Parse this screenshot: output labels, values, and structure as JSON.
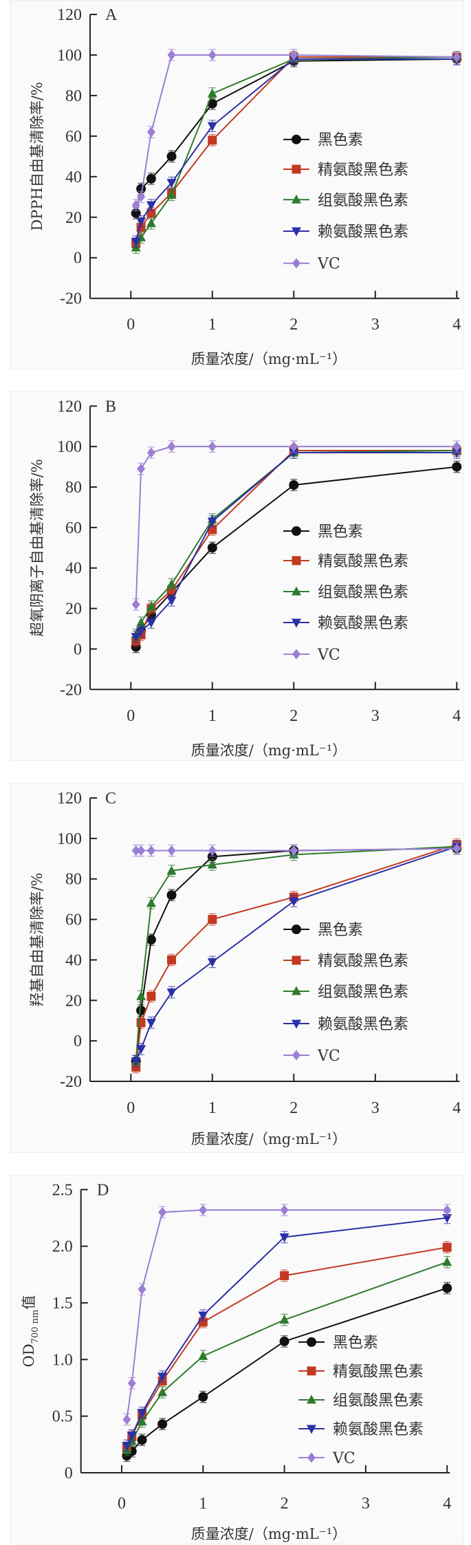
{
  "chart_data": [
    {
      "type": "line",
      "panel": "A",
      "title": "A",
      "xlabel": "质量浓度/（mg·mL⁻¹）",
      "ylabel": "DPPH自由基清除率/%",
      "xlim": [
        0,
        4
      ],
      "ylim": [
        -20,
        120
      ],
      "xticks": [
        "0",
        "1",
        "2",
        "3",
        "4"
      ],
      "yticks": [
        "120",
        "100",
        "80",
        "60",
        "40",
        "20",
        "0",
        "-20"
      ],
      "yticks_values": [
        120,
        100,
        80,
        60,
        40,
        20,
        0,
        -20
      ],
      "legend_position": "right-center",
      "x": [
        0.0625,
        0.125,
        0.25,
        0.5,
        1,
        2,
        4
      ],
      "series": [
        {
          "name": "黑色素",
          "marker": "circle",
          "color": "#111111",
          "values": [
            22,
            34,
            39,
            50,
            76,
            97,
            98
          ]
        },
        {
          "name": "精氨酸黑色素",
          "marker": "square",
          "color": "#c23a22",
          "values": [
            7,
            15,
            22,
            32,
            58,
            99,
            99
          ]
        },
        {
          "name": "组氨酸黑色素",
          "marker": "triangle-up",
          "color": "#2e7b2e",
          "values": [
            5,
            10,
            17,
            31,
            81,
            98,
            99
          ]
        },
        {
          "name": "赖氨酸黑色素",
          "marker": "triangle-down",
          "color": "#2a30a6",
          "values": [
            8,
            18,
            26,
            37,
            65,
            98,
            98
          ]
        },
        {
          "name": "VC",
          "marker": "diamond",
          "color": "#9b7fd4",
          "values": [
            26,
            30,
            62,
            100,
            100,
            100,
            99
          ]
        }
      ]
    },
    {
      "type": "line",
      "panel": "B",
      "title": "B",
      "xlabel": "质量浓度/（mg·mL⁻¹）",
      "ylabel": "超氧阴离子自由基清除率/%",
      "xlim": [
        0,
        4
      ],
      "ylim": [
        -20,
        120
      ],
      "xticks": [
        "0",
        "1",
        "2",
        "3",
        "4"
      ],
      "yticks": [
        "120",
        "100",
        "80",
        "60",
        "40",
        "20",
        "0",
        "-20"
      ],
      "yticks_values": [
        120,
        100,
        80,
        60,
        40,
        20,
        0,
        -20
      ],
      "legend_position": "right-center",
      "x": [
        0.0625,
        0.125,
        0.25,
        0.5,
        1,
        2,
        4
      ],
      "series": [
        {
          "name": "黑色素",
          "marker": "circle",
          "color": "#111111",
          "values": [
            1,
            9,
            17,
            28,
            50,
            81,
            90
          ]
        },
        {
          "name": "精氨酸黑色素",
          "marker": "square",
          "color": "#c23a22",
          "values": [
            4,
            7,
            20,
            29,
            59,
            98,
            98
          ]
        },
        {
          "name": "组氨酸黑色素",
          "marker": "triangle-up",
          "color": "#2e7b2e",
          "values": [
            7,
            13,
            21,
            32,
            64,
            97,
            98
          ]
        },
        {
          "name": "赖氨酸黑色素",
          "marker": "triangle-down",
          "color": "#2a30a6",
          "values": [
            6,
            9,
            13,
            24,
            63,
            97,
            97
          ]
        },
        {
          "name": "VC",
          "marker": "diamond",
          "color": "#9b7fd4",
          "values": [
            22,
            89,
            97,
            100,
            100,
            100,
            100
          ]
        }
      ]
    },
    {
      "type": "line",
      "panel": "C",
      "title": "C",
      "xlabel": "质量浓度/（mg·mL⁻¹）",
      "ylabel": "羟基自由基清除率/%",
      "xlim": [
        0,
        4
      ],
      "ylim": [
        -20,
        120
      ],
      "xticks": [
        "0",
        "1",
        "2",
        "3",
        "4"
      ],
      "yticks": [
        "120",
        "100",
        "80",
        "60",
        "40",
        "20",
        "0",
        "-20"
      ],
      "yticks_values": [
        120,
        100,
        80,
        60,
        40,
        20,
        0,
        -20
      ],
      "legend_position": "right-bottom",
      "x": [
        0.0625,
        0.125,
        0.25,
        0.5,
        1,
        2,
        4
      ],
      "series": [
        {
          "name": "黑色素",
          "marker": "circle",
          "color": "#111111",
          "values": [
            -10,
            15,
            50,
            72,
            91,
            94,
            95
          ]
        },
        {
          "name": "精氨酸黑色素",
          "marker": "square",
          "color": "#c23a22",
          "values": [
            -13,
            9,
            22,
            40,
            60,
            71,
            97
          ]
        },
        {
          "name": "组氨酸黑色素",
          "marker": "triangle-up",
          "color": "#2e7b2e",
          "values": [
            -10,
            22,
            68,
            84,
            87,
            92,
            96
          ]
        },
        {
          "name": "赖氨酸黑色素",
          "marker": "triangle-down",
          "color": "#2a30a6",
          "values": [
            -10,
            -4,
            9,
            24,
            39,
            69,
            96
          ]
        },
        {
          "name": "VC",
          "marker": "diamond",
          "color": "#9b7fd4",
          "values": [
            94,
            94,
            94,
            94,
            94,
            94,
            95
          ]
        }
      ]
    },
    {
      "type": "line",
      "panel": "D",
      "title": "D",
      "xlabel": "质量浓度/（mg·mL⁻¹）",
      "ylabel_main": "OD",
      "ylabel_sub": "700 nm",
      "ylabel_suffix": "值",
      "xlim": [
        0,
        4
      ],
      "ylim": [
        0,
        2.5
      ],
      "xticks": [
        "0",
        "1",
        "2",
        "3",
        "4"
      ],
      "yticks": [
        "2.5",
        "2.0",
        "1.5",
        "1.0",
        "0.5",
        "0"
      ],
      "yticks_values": [
        2.5,
        2.0,
        1.5,
        1.0,
        0.5,
        0
      ],
      "legend_position": "right-bottom",
      "x": [
        0.0625,
        0.125,
        0.25,
        0.5,
        1,
        2,
        4
      ],
      "series": [
        {
          "name": "黑色素",
          "marker": "circle",
          "color": "#111111",
          "values": [
            0.15,
            0.19,
            0.29,
            0.43,
            0.67,
            1.16,
            1.63
          ]
        },
        {
          "name": "精氨酸黑色素",
          "marker": "square",
          "color": "#c23a22",
          "values": [
            0.22,
            0.32,
            0.51,
            0.81,
            1.33,
            1.74,
            1.99
          ]
        },
        {
          "name": "组氨酸黑色素",
          "marker": "triangle-up",
          "color": "#2e7b2e",
          "values": [
            0.2,
            0.28,
            0.45,
            0.71,
            1.03,
            1.35,
            1.86
          ]
        },
        {
          "name": "赖氨酸黑色素",
          "marker": "triangle-down",
          "color": "#2a30a6",
          "values": [
            0.24,
            0.33,
            0.53,
            0.85,
            1.39,
            2.08,
            2.25
          ]
        },
        {
          "name": "VC",
          "marker": "diamond",
          "color": "#9b7fd4",
          "values": [
            0.47,
            0.79,
            1.62,
            2.3,
            2.32,
            2.32,
            2.32
          ]
        }
      ]
    }
  ]
}
